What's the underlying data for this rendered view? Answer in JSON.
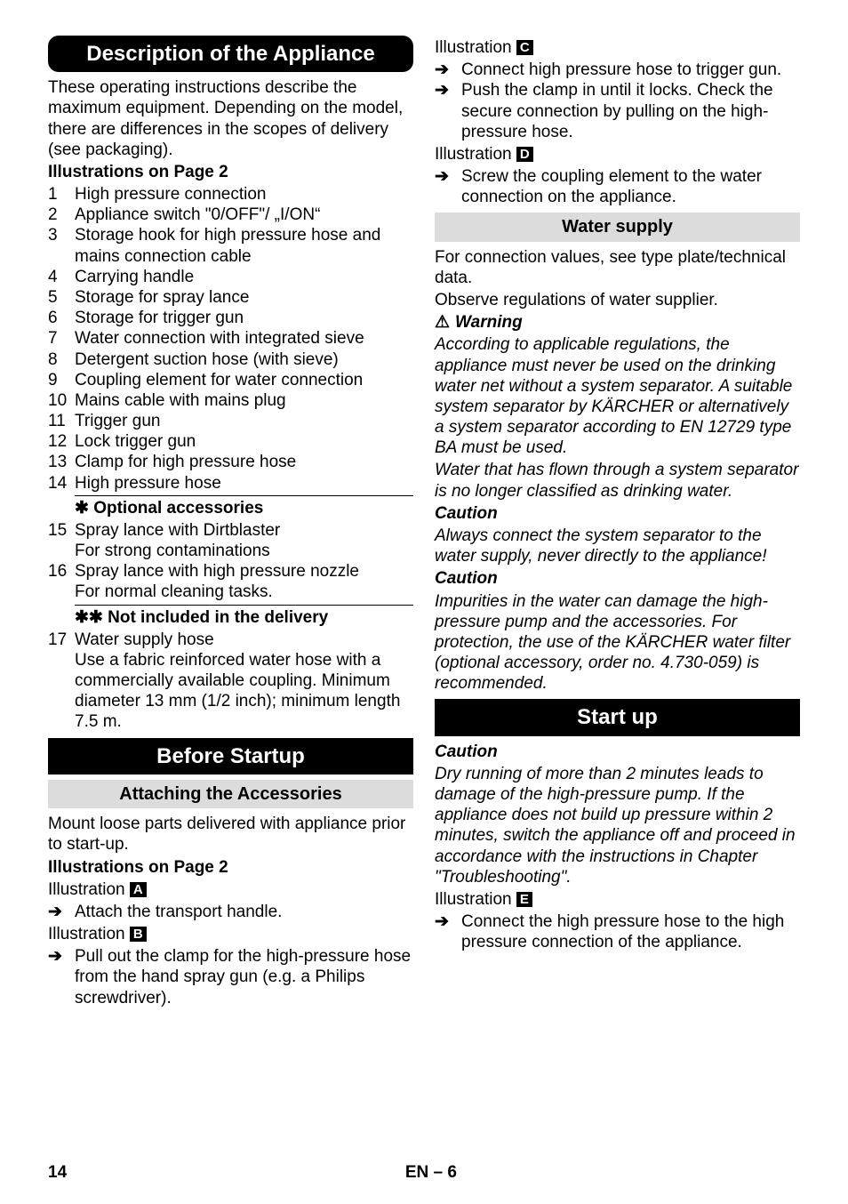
{
  "left": {
    "h1": "Description of the Appliance",
    "intro": "These operating instructions describe the maximum equipment. Depending on the model, there are differences in the scopes of delivery (see packaging).",
    "illus_heading": "Illustrations on Page 2",
    "items": [
      "High pressure connection",
      "Appliance switch \"0/OFF\"/ „I/ON“",
      "Storage hook for high pressure hose and mains connection cable",
      "Carrying handle",
      "Storage for spray lance",
      "Storage for trigger gun",
      "Water connection with integrated sieve",
      "Detergent suction hose (with sieve)",
      "Coupling element for water connection",
      "Mains cable with mains plug",
      "Trigger gun",
      "Lock trigger gun",
      "Clamp for high pressure hose",
      "High pressure hose"
    ],
    "opt_heading": "✱ Optional accessories",
    "opt_items": [
      {
        "num": "15",
        "txt": "Spray lance with Dirtblaster",
        "sub": "For strong contaminations"
      },
      {
        "num": "16",
        "txt": "Spray lance with high pressure nozzle",
        "sub": "For normal cleaning tasks."
      }
    ],
    "notinc_heading": "✱✱ Not included in the delivery",
    "notinc_item": {
      "num": "17",
      "txt": "Water supply hose",
      "sub": "Use a fabric reinforced water hose with a commercially available coupling. Minimum diameter 13 mm (1/2 inch); minimum length 7.5 m."
    },
    "h2": "Before Startup",
    "h3": "Attaching the Accessories",
    "mount": "Mount loose parts delivered with appliance prior to start-up.",
    "illus2": "Illustrations on Page 2",
    "illA_label": "Illustration ",
    "illA_letter": "A",
    "illA_step": "Attach the transport handle.",
    "illB_label": "Illustration ",
    "illB_letter": "B",
    "illB_step": "Pull out the clamp for the high-pressure hose from the hand spray gun (e.g. a Philips screwdriver)."
  },
  "right": {
    "illC_label": "Illustration ",
    "illC_letter": "C",
    "illC_steps": [
      "Connect high pressure hose to trigger gun.",
      "Push the clamp in until it locks. Check the secure connection by pulling on the high-pressure hose."
    ],
    "illD_label": "Illustration ",
    "illD_letter": "D",
    "illD_step": "Screw the coupling element to the water connection on the appliance.",
    "h_water": "Water supply",
    "water_p1": "For connection values, see type plate/technical data.",
    "water_p2": "Observe regulations of water supplier.",
    "warn_label": "Warning",
    "warn_text": "According to applicable regulations, the appliance must never be used on the drinking water net without a system separator. A suitable system separator by KÄRCHER or alternatively a system separator according to EN 12729 type BA must be used.",
    "warn_text2": "Water that has flown through a system separator is no longer classified as drinking water.",
    "caution1_label": "Caution",
    "caution1_text": "Always connect the system separator to the water supply, never directly to the appliance!",
    "caution2_label": "Caution",
    "caution2_text": "Impurities in the water can damage the high-pressure pump and the accessories. For protection, the use of the KÄRCHER water filter (optional accessory, order no. 4.730-059) is recommended.",
    "h_startup": "Start up",
    "caution3_label": "Caution",
    "caution3_text": "Dry running of more than 2 minutes leads to damage of the high-pressure pump. If the appliance does not build up pressure within 2 minutes, switch the appliance off and proceed in accordance with the instructions in Chapter \"Troubleshooting\".",
    "illE_label": "Illustration ",
    "illE_letter": "E",
    "illE_step": "Connect the high pressure hose to the high pressure connection of the appliance."
  },
  "footer": {
    "page": "14",
    "code": "EN – 6"
  }
}
